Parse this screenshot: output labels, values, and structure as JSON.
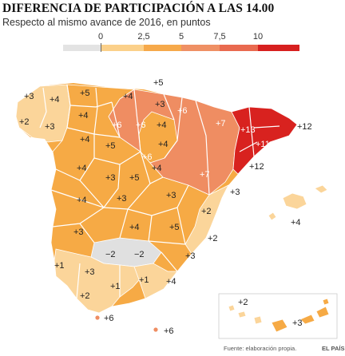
{
  "title": "DIFERENCIA DE PARTICIPACIÓN A LAS 14.00",
  "subtitle": "Respecto al mismo avance de 2016, en puntos",
  "legend": {
    "ticks": [
      "0",
      "2,5",
      "5",
      "7,5",
      "10"
    ],
    "colors": [
      "#e3e3e3",
      "#fbd08a",
      "#f6a94a",
      "#ef9064",
      "#e96a4f",
      "#d7201f"
    ]
  },
  "colors": {
    "sea": "#ffffff",
    "neg": "#e0e0e0",
    "low": "#fbd59a",
    "mid": "#f6aa45",
    "high": "#ef8d62",
    "top": "#d8221f",
    "border": "#ffffff"
  },
  "map_labels": {
    "acoruna": "+3",
    "lugo": "+4",
    "asturias": "+5",
    "cantabria": "+4",
    "vizcaya": "+5",
    "guipuzcoa": "+3",
    "pontevedra": "+2",
    "ourense": "+3",
    "leon": "+4",
    "burgos": "+6",
    "palencia": "+6",
    "navarra": "+6",
    "rioja": "+4",
    "huesca": "+7",
    "girona": "+12",
    "lleida": "+13",
    "barcelona": "+11",
    "tarragona": "+12",
    "zamora": "+4",
    "valladolid": "+5",
    "soria": "+4",
    "zaragoza": "+6",
    "salamanca": "+4",
    "segovia": "+3",
    "avila": "+5",
    "guadalajara": "+4",
    "teruel": "+7",
    "caceres": "+4",
    "toledo": "+3",
    "madrid": "+3",
    "cuenca": "+3",
    "castellon": "+3",
    "valencia": "+2",
    "baleares": "+4",
    "badajoz": "+3",
    "ciudadreal": "+4",
    "albacete": "+5",
    "alicante": "+2",
    "huelva": "+1",
    "sevilla": "+3",
    "cordoba": "−2",
    "jaen": "−2",
    "murcia": "+3",
    "cadiz": "+2",
    "malaga": "+1",
    "granada": "+1",
    "almeria": "+4",
    "ceuta": "+6",
    "melilla": "+6",
    "lpalmas": "+2",
    "tenerife": "+3"
  },
  "source": "Fuente: elaboración propia.",
  "brand": "EL PAÍS"
}
